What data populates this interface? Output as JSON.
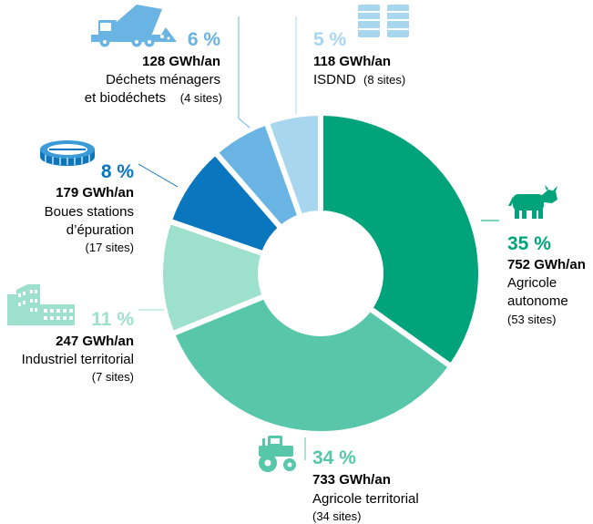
{
  "chart_data": {
    "type": "pie",
    "donut": true,
    "unit": "GWh/an",
    "slices": [
      {
        "pct": "35 %",
        "energy": "752 GWh/an",
        "label_lines": [
          "Agricole",
          "autonome"
        ],
        "sites": "(53 sites)",
        "value": 752,
        "color": "#00a37a",
        "label_color": "#00a37a",
        "icon": "cow-icon"
      },
      {
        "pct": "34 %",
        "energy": "733 GWh/an",
        "label_lines": [
          "Agricole territorial"
        ],
        "sites": "(34 sites)",
        "value": 733,
        "color": "#57c6a9",
        "label_color": "#57c6a9",
        "icon": "tractor-icon"
      },
      {
        "pct": "11 %",
        "energy": "247 GWh/an",
        "label_lines": [
          "Industriel territorial"
        ],
        "sites": "(7 sites)",
        "value": 247,
        "color": "#9de0cc",
        "label_color": "#9de0cc",
        "icon": "factory-icon"
      },
      {
        "pct": "8 %",
        "energy": "179 GWh/an",
        "label_lines": [
          "Boues stations",
          "d’épuration"
        ],
        "sites": "(17 sites)",
        "value": 179,
        "color": "#0a76be",
        "label_color": "#0a76be",
        "icon": "wastewater-plant-icon"
      },
      {
        "pct": "6 %",
        "energy": "128 GWh/an",
        "label_lines": [
          "Déchets ménagers",
          "et biodéchets"
        ],
        "sites": "(4 sites)",
        "value": 128,
        "color": "#69b4e2",
        "label_color": "#69b4e2",
        "icon": "garbage-truck-icon"
      },
      {
        "pct": "5 %",
        "energy": "118 GWh/an",
        "label_lines": [
          "ISDND"
        ],
        "sites": "(8 sites)",
        "value": 118,
        "color": "#a8d6ef",
        "label_color": "#a8d6ef",
        "icon": "barrels-icon"
      }
    ]
  }
}
